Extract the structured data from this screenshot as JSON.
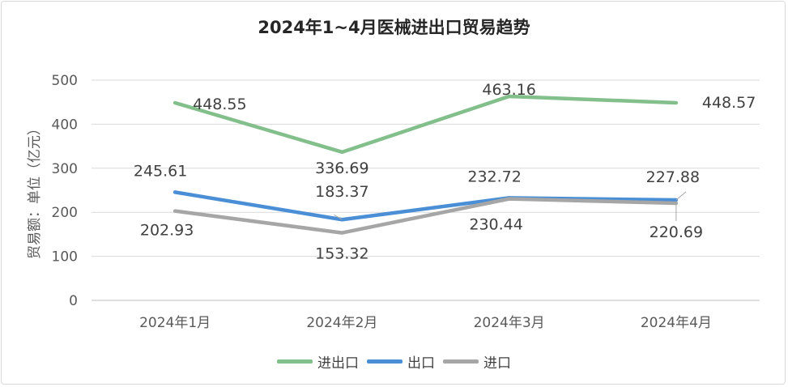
{
  "chart_data": {
    "type": "line",
    "title": "2024年1~4月医械进出口贸易趋势",
    "ylabel": "贸易额：单位（亿元）",
    "xlabel": "",
    "categories": [
      "2024年1月",
      "2024年2月",
      "2024年3月",
      "2024年4月"
    ],
    "ylim": [
      0,
      500
    ],
    "yticks": [
      "0",
      "100",
      "200",
      "300",
      "400",
      "500"
    ],
    "grid": true,
    "legend_position": "bottom",
    "series": [
      {
        "name": "进出口",
        "color": "#82bf8b",
        "values": [
          448.55,
          336.69,
          463.16,
          448.57
        ],
        "labels": [
          "448.55",
          "336.69",
          "463.16",
          "448.57"
        ]
      },
      {
        "name": "出口",
        "color": "#4a8fd6",
        "values": [
          245.61,
          183.37,
          232.72,
          227.88
        ],
        "labels": [
          "245.61",
          "183.37",
          "232.72",
          "227.88"
        ]
      },
      {
        "name": "进口",
        "color": "#a6a6a6",
        "values": [
          202.93,
          153.32,
          230.44,
          220.69
        ],
        "labels": [
          "202.93",
          "153.32",
          "230.44",
          "220.69"
        ]
      }
    ]
  }
}
